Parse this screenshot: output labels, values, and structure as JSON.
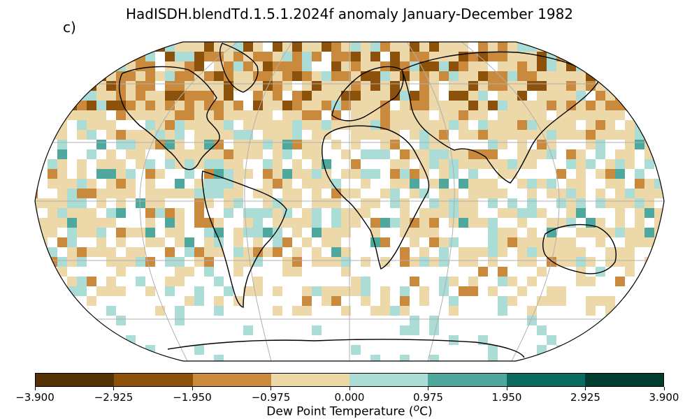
{
  "map": {
    "title": "HadISDH.blendTd.1.5.1.2024f anomaly January-December 1982",
    "panel_label": "c)",
    "projection": "Robinson",
    "grid_colors": {
      "strong_negative": "#8c510a",
      "negative": "#c98a3e",
      "weak_negative": "#ecd8a9",
      "weak_positive": "#abdcd6",
      "positive": "#4fa89e",
      "strong_positive": "#0b6a62",
      "no_data": "#ffffff"
    }
  },
  "colorbar": {
    "label_prefix": "Dew Point Temperature (",
    "label_unit_sup": "o",
    "label_suffix": "C)",
    "colors": [
      "#543005",
      "#8c510a",
      "#c98a3e",
      "#ecd8a9",
      "#abdcd6",
      "#4fa89e",
      "#0b6a62",
      "#003c30"
    ],
    "ticks": [
      "−3.900",
      "−2.925",
      "−1.950",
      "−0.975",
      "0.000",
      "0.975",
      "1.950",
      "2.925",
      "3.900"
    ]
  }
}
